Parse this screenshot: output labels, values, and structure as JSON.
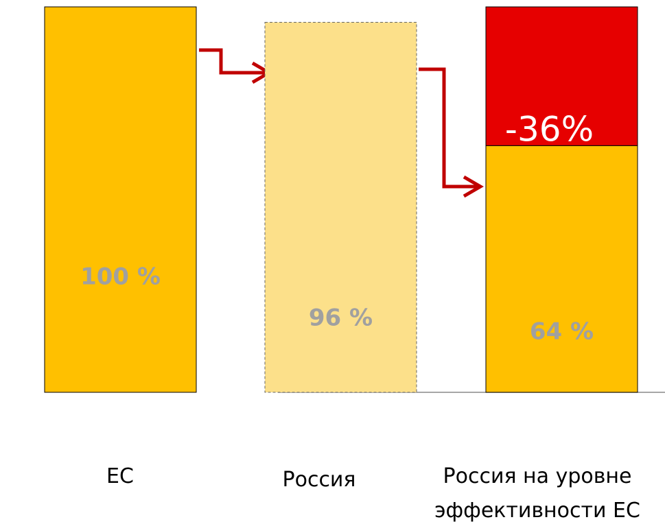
{
  "chart_data": {
    "type": "bar",
    "categories": [
      "ЕС",
      "Россия",
      "Россия на уровне эффективности ЕС"
    ],
    "ylim": [
      0,
      100
    ],
    "series": [
      {
        "color": "#FFC000",
        "values": [
          100,
          96,
          64
        ],
        "value_labels": [
          "100 %",
          "96 %",
          "64 %"
        ]
      },
      {
        "color": "#E60000",
        "values": [
          null,
          null,
          -36
        ],
        "value_labels": [
          null,
          null,
          "-36%"
        ]
      }
    ],
    "highlight_color": "#FCE08A"
  }
}
